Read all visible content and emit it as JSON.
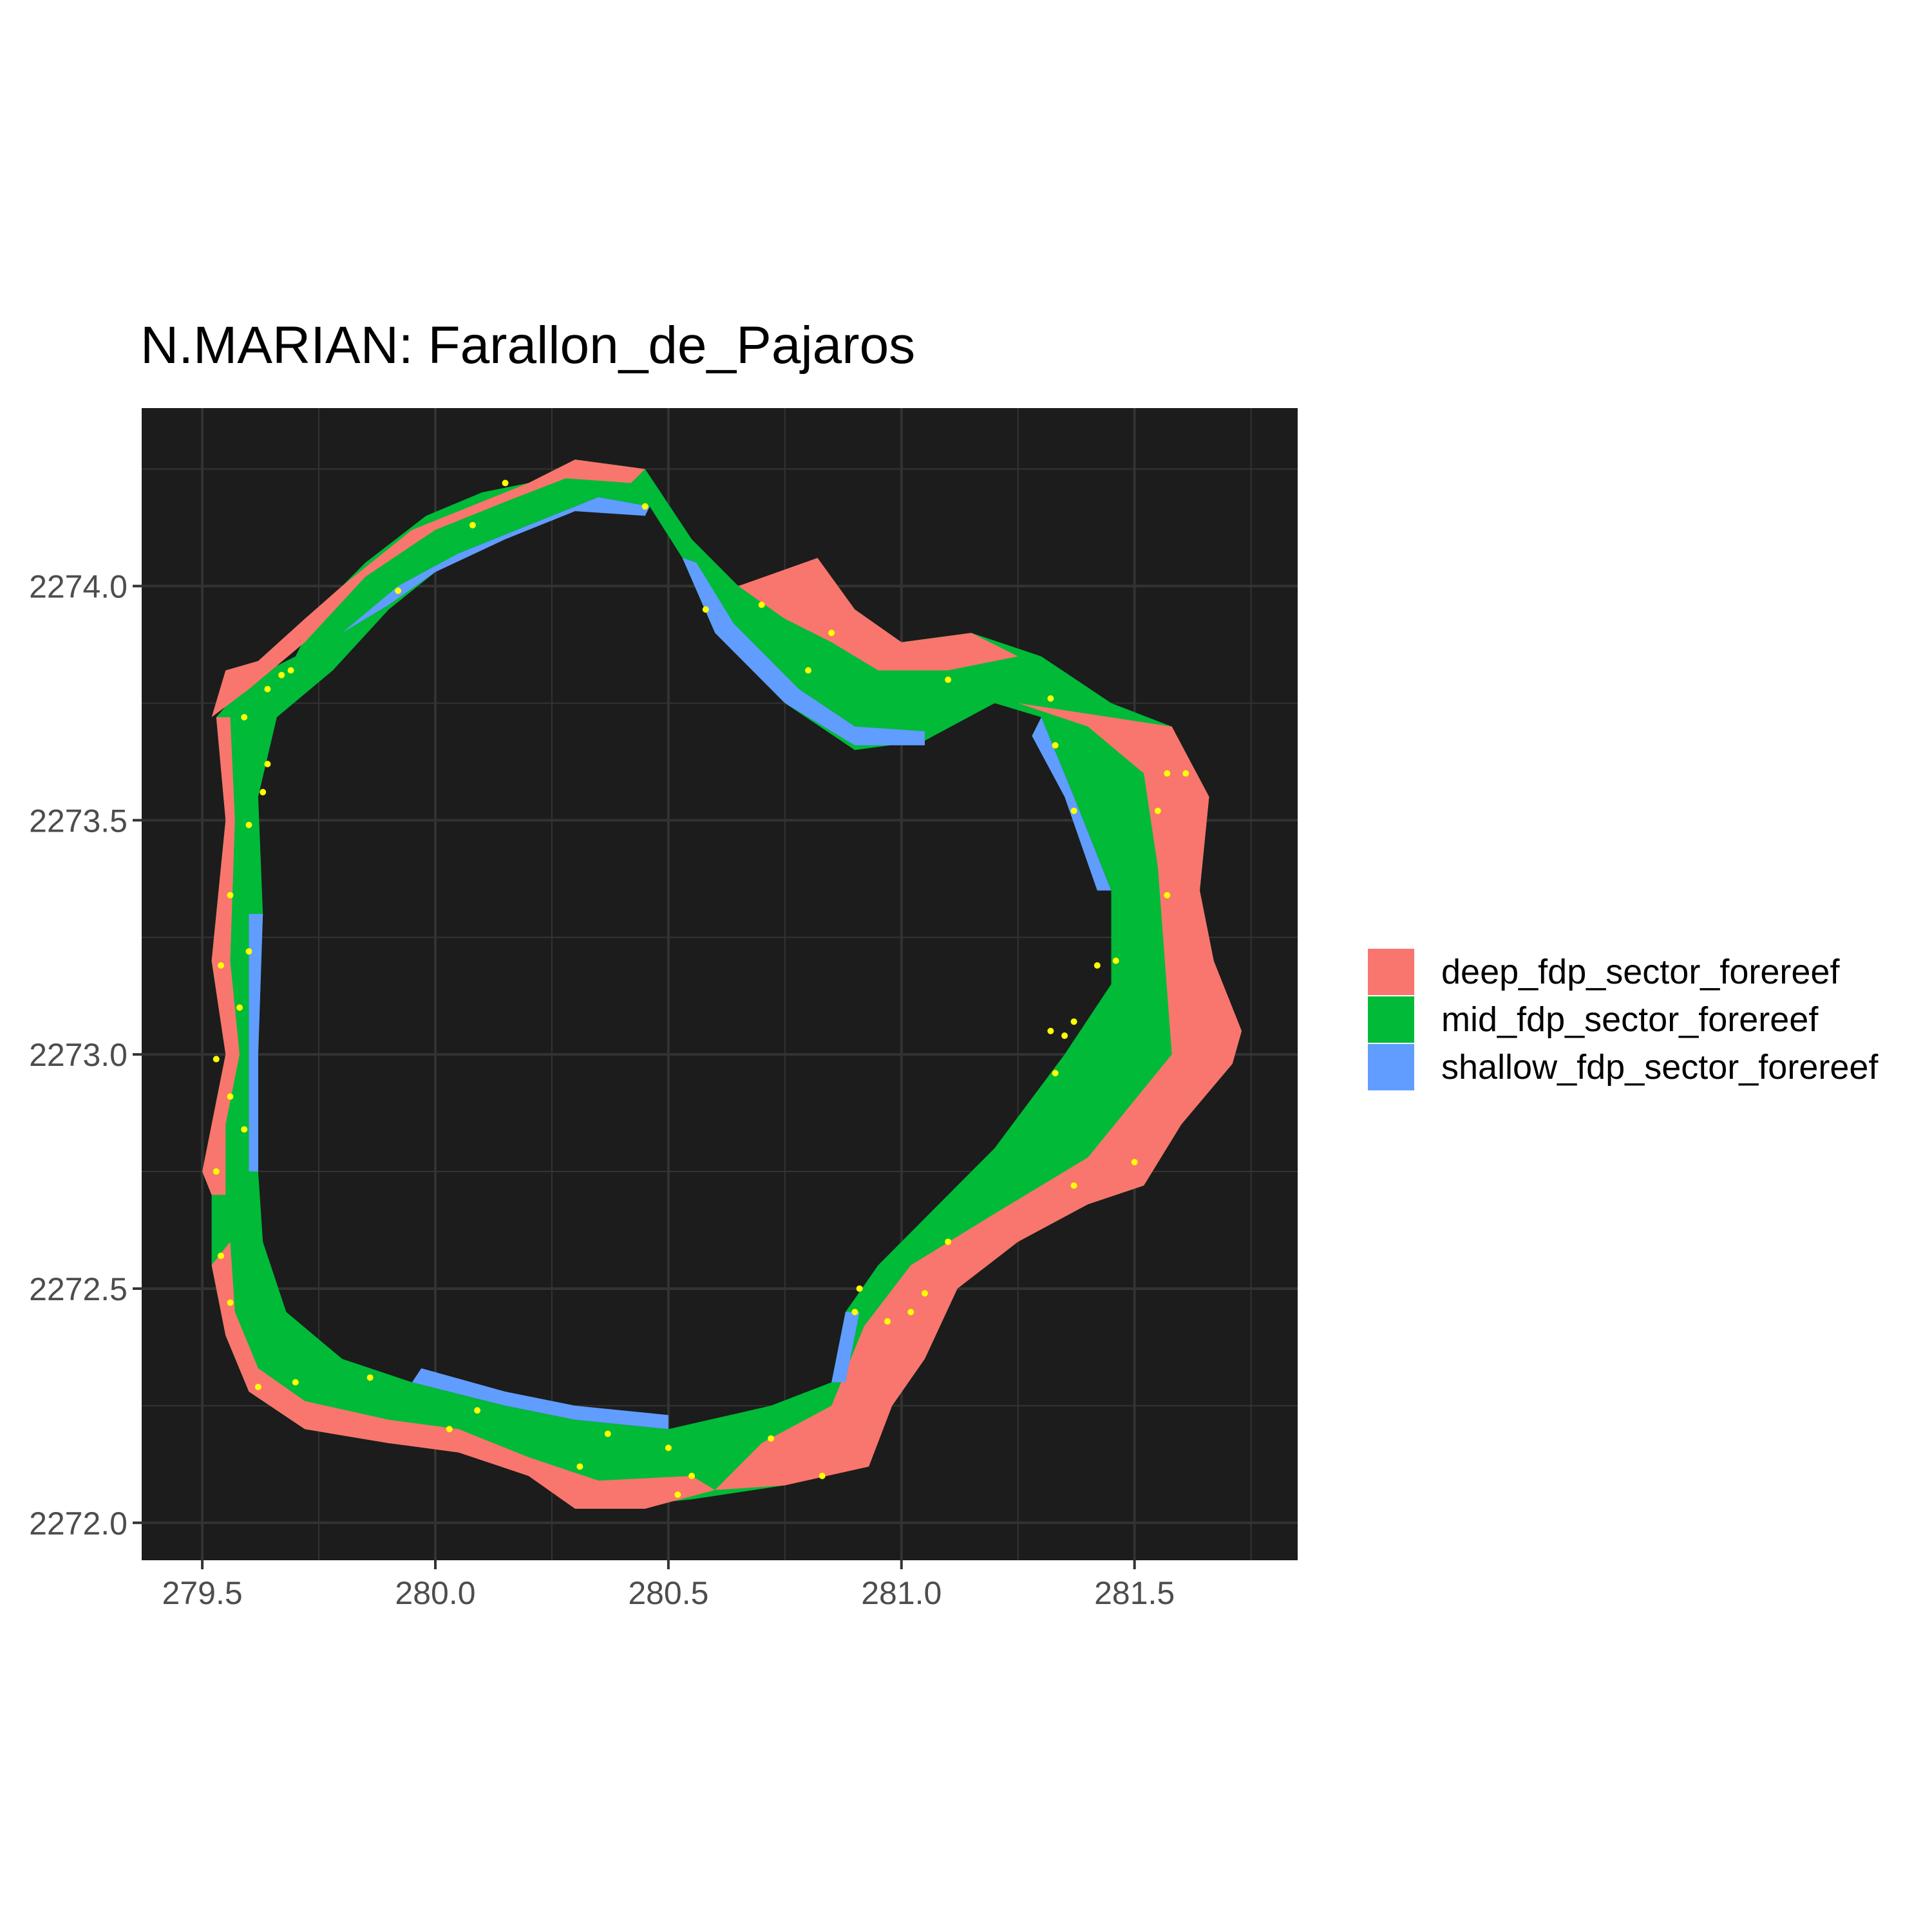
{
  "title": "N.MARIAN: Farallon_de_Pajaros",
  "colors": {
    "panel_bg": "#1c1c1c",
    "grid": "#333333",
    "deep": "#f8766d",
    "mid": "#00ba38",
    "shallow": "#619cff",
    "points": "#ffff00",
    "axis_text": "#4d4d4d"
  },
  "chart_data": {
    "type": "map",
    "title": "N.MARIAN: Farallon_de_Pajaros",
    "xlim": [
      279.37,
      281.85
    ],
    "ylim": [
      2271.92,
      2274.38
    ],
    "x_ticks": [
      279.5,
      280.0,
      280.5,
      281.0,
      281.5
    ],
    "x_tick_labels": [
      "279.5",
      "280.0",
      "280.5",
      "281.0",
      "281.5"
    ],
    "y_ticks": [
      2272.0,
      2272.5,
      2273.0,
      2273.5,
      2274.0
    ],
    "y_tick_labels": [
      "2272.0",
      "2272.5",
      "2273.0",
      "2273.5",
      "2274.0"
    ],
    "grid": true,
    "legend_position": "right",
    "legend": [
      {
        "key": "deep",
        "label": "deep_fdp_sector_forereef"
      },
      {
        "key": "mid",
        "label": "mid_fdp_sector_forereef"
      },
      {
        "key": "shallow",
        "label": "shallow_fdp_sector_forereef"
      }
    ],
    "outer_ring": [
      [
        279.52,
        2272.7
      ],
      [
        279.5,
        2272.75
      ],
      [
        279.52,
        2272.85
      ],
      [
        279.55,
        2273.0
      ],
      [
        279.52,
        2273.2
      ],
      [
        279.55,
        2273.5
      ],
      [
        279.53,
        2273.72
      ],
      [
        279.6,
        2273.8
      ],
      [
        279.7,
        2273.85
      ],
      [
        279.75,
        2273.95
      ],
      [
        279.85,
        2274.05
      ],
      [
        279.98,
        2274.15
      ],
      [
        280.1,
        2274.2
      ],
      [
        280.2,
        2274.22
      ],
      [
        280.3,
        2274.27
      ],
      [
        280.45,
        2274.25
      ],
      [
        280.55,
        2274.1
      ],
      [
        280.65,
        2274.0
      ],
      [
        280.8,
        2274.05
      ],
      [
        280.9,
        2273.95
      ],
      [
        281.0,
        2273.88
      ],
      [
        281.15,
        2273.9
      ],
      [
        281.3,
        2273.85
      ],
      [
        281.45,
        2273.75
      ],
      [
        281.58,
        2273.7
      ],
      [
        281.66,
        2273.55
      ],
      [
        281.64,
        2273.35
      ],
      [
        281.67,
        2273.2
      ],
      [
        281.72,
        2273.05
      ],
      [
        281.7,
        2272.98
      ],
      [
        281.6,
        2272.85
      ],
      [
        281.52,
        2272.72
      ],
      [
        281.4,
        2272.68
      ],
      [
        281.25,
        2272.6
      ],
      [
        281.12,
        2272.5
      ],
      [
        281.05,
        2272.35
      ],
      [
        280.98,
        2272.25
      ],
      [
        280.9,
        2272.15
      ],
      [
        280.75,
        2272.08
      ],
      [
        280.55,
        2272.05
      ],
      [
        280.35,
        2272.03
      ],
      [
        280.2,
        2272.1
      ],
      [
        280.05,
        2272.16
      ],
      [
        279.9,
        2272.17
      ],
      [
        279.72,
        2272.2
      ],
      [
        279.6,
        2272.28
      ],
      [
        279.55,
        2272.4
      ],
      [
        279.52,
        2272.55
      ]
    ],
    "inner_ring": [
      [
        279.62,
        2272.75
      ],
      [
        279.62,
        2273.0
      ],
      [
        279.63,
        2273.3
      ],
      [
        279.62,
        2273.55
      ],
      [
        279.66,
        2273.72
      ],
      [
        279.78,
        2273.82
      ],
      [
        279.9,
        2273.95
      ],
      [
        280.05,
        2274.07
      ],
      [
        280.2,
        2274.13
      ],
      [
        280.35,
        2274.19
      ],
      [
        280.46,
        2274.17
      ],
      [
        280.53,
        2274.06
      ],
      [
        280.6,
        2273.9
      ],
      [
        280.75,
        2273.75
      ],
      [
        280.9,
        2273.65
      ],
      [
        281.05,
        2273.67
      ],
      [
        281.2,
        2273.75
      ],
      [
        281.3,
        2273.72
      ],
      [
        281.37,
        2273.55
      ],
      [
        281.45,
        2273.35
      ],
      [
        281.45,
        2273.15
      ],
      [
        281.35,
        2273.0
      ],
      [
        281.2,
        2272.8
      ],
      [
        281.05,
        2272.65
      ],
      [
        280.95,
        2272.55
      ],
      [
        280.88,
        2272.45
      ],
      [
        280.85,
        2272.3
      ],
      [
        280.72,
        2272.25
      ],
      [
        280.5,
        2272.2
      ],
      [
        280.3,
        2272.22
      ],
      [
        280.15,
        2272.25
      ],
      [
        279.95,
        2272.3
      ],
      [
        279.8,
        2272.35
      ],
      [
        279.68,
        2272.45
      ],
      [
        279.63,
        2272.6
      ]
    ],
    "deep_fill": [
      {
        "points": [
          [
            281.25,
            2273.75
          ],
          [
            281.58,
            2273.7
          ],
          [
            281.66,
            2273.55
          ],
          [
            281.64,
            2273.35
          ],
          [
            281.67,
            2273.2
          ],
          [
            281.73,
            2273.05
          ],
          [
            281.71,
            2272.98
          ],
          [
            281.6,
            2272.85
          ],
          [
            281.52,
            2272.72
          ],
          [
            281.4,
            2272.68
          ],
          [
            281.25,
            2272.6
          ],
          [
            281.12,
            2272.5
          ],
          [
            281.05,
            2272.35
          ],
          [
            280.98,
            2272.25
          ],
          [
            280.93,
            2272.12
          ],
          [
            280.75,
            2272.08
          ],
          [
            280.6,
            2272.07
          ],
          [
            280.7,
            2272.17
          ],
          [
            280.85,
            2272.25
          ],
          [
            280.92,
            2272.42
          ],
          [
            281.02,
            2272.55
          ],
          [
            281.2,
            2272.66
          ],
          [
            281.4,
            2272.78
          ],
          [
            281.58,
            2273.0
          ],
          [
            281.55,
            2273.4
          ],
          [
            281.52,
            2273.6
          ],
          [
            281.4,
            2273.7
          ]
        ]
      },
      {
        "points": [
          [
            280.65,
            2274.0
          ],
          [
            280.82,
            2274.06
          ],
          [
            280.9,
            2273.95
          ],
          [
            281.0,
            2273.88
          ],
          [
            281.15,
            2273.9
          ],
          [
            281.25,
            2273.85
          ],
          [
            281.1,
            2273.82
          ],
          [
            280.95,
            2273.82
          ],
          [
            280.85,
            2273.88
          ],
          [
            280.75,
            2273.93
          ]
        ]
      },
      {
        "points": [
          [
            279.52,
            2273.72
          ],
          [
            279.55,
            2273.82
          ],
          [
            279.62,
            2273.84
          ],
          [
            279.72,
            2273.93
          ],
          [
            279.8,
            2274.0
          ],
          [
            279.95,
            2274.12
          ],
          [
            280.1,
            2274.18
          ],
          [
            280.2,
            2274.22
          ],
          [
            280.3,
            2274.27
          ],
          [
            280.45,
            2274.25
          ],
          [
            280.42,
            2274.22
          ],
          [
            280.28,
            2274.23
          ],
          [
            280.15,
            2274.18
          ],
          [
            280.0,
            2274.12
          ],
          [
            279.85,
            2274.02
          ],
          [
            279.72,
            2273.88
          ],
          [
            279.6,
            2273.78
          ]
        ]
      },
      {
        "points": [
          [
            279.52,
            2272.7
          ],
          [
            279.5,
            2272.75
          ],
          [
            279.52,
            2272.85
          ],
          [
            279.55,
            2273.0
          ],
          [
            279.52,
            2273.2
          ],
          [
            279.55,
            2273.5
          ],
          [
            279.53,
            2273.72
          ],
          [
            279.56,
            2273.72
          ],
          [
            279.57,
            2273.5
          ],
          [
            279.56,
            2273.2
          ],
          [
            279.58,
            2273.0
          ],
          [
            279.55,
            2272.85
          ],
          [
            279.55,
            2272.7
          ]
        ]
      },
      {
        "points": [
          [
            279.52,
            2272.55
          ],
          [
            279.55,
            2272.4
          ],
          [
            279.6,
            2272.28
          ],
          [
            279.72,
            2272.2
          ],
          [
            279.9,
            2272.17
          ],
          [
            280.05,
            2272.15
          ],
          [
            280.2,
            2272.1
          ],
          [
            280.3,
            2272.03
          ],
          [
            280.45,
            2272.03
          ],
          [
            280.6,
            2272.07
          ],
          [
            280.55,
            2272.1
          ],
          [
            280.35,
            2272.09
          ],
          [
            280.2,
            2272.14
          ],
          [
            280.05,
            2272.2
          ],
          [
            279.9,
            2272.22
          ],
          [
            279.72,
            2272.26
          ],
          [
            279.62,
            2272.33
          ],
          [
            279.57,
            2272.45
          ],
          [
            279.56,
            2272.6
          ]
        ]
      }
    ],
    "shallow_fill": [
      {
        "points": [
          [
            279.8,
            2273.9
          ],
          [
            279.92,
            2274.0
          ],
          [
            280.05,
            2274.07
          ],
          [
            280.2,
            2274.13
          ],
          [
            280.35,
            2274.19
          ],
          [
            280.46,
            2274.17
          ],
          [
            280.45,
            2274.15
          ],
          [
            280.3,
            2274.16
          ],
          [
            280.15,
            2274.1
          ],
          [
            280.0,
            2274.03
          ],
          [
            279.9,
            2273.96
          ]
        ]
      },
      {
        "points": [
          [
            280.53,
            2274.06
          ],
          [
            280.6,
            2273.9
          ],
          [
            280.75,
            2273.75
          ],
          [
            280.9,
            2273.66
          ],
          [
            281.05,
            2273.66
          ],
          [
            281.05,
            2273.69
          ],
          [
            280.9,
            2273.7
          ],
          [
            280.78,
            2273.78
          ],
          [
            280.64,
            2273.92
          ],
          [
            280.56,
            2274.05
          ]
        ]
      },
      {
        "points": [
          [
            281.3,
            2273.72
          ],
          [
            281.37,
            2273.55
          ],
          [
            281.45,
            2273.35
          ],
          [
            281.42,
            2273.35
          ],
          [
            281.35,
            2273.55
          ],
          [
            281.28,
            2273.68
          ]
        ]
      },
      {
        "points": [
          [
            279.95,
            2272.3
          ],
          [
            280.15,
            2272.25
          ],
          [
            280.3,
            2272.22
          ],
          [
            280.5,
            2272.2
          ],
          [
            280.5,
            2272.23
          ],
          [
            280.3,
            2272.25
          ],
          [
            280.15,
            2272.28
          ],
          [
            279.97,
            2272.33
          ]
        ]
      },
      {
        "points": [
          [
            280.88,
            2272.45
          ],
          [
            280.85,
            2272.3
          ],
          [
            280.88,
            2272.3
          ],
          [
            280.91,
            2272.45
          ]
        ]
      },
      {
        "points": [
          [
            279.62,
            2272.75
          ],
          [
            279.62,
            2273.0
          ],
          [
            279.63,
            2273.3
          ],
          [
            279.6,
            2273.3
          ],
          [
            279.6,
            2273.0
          ],
          [
            279.6,
            2272.75
          ]
        ]
      }
    ],
    "survey_points": [
      [
        280.15,
        2274.22
      ],
      [
        280.45,
        2274.17
      ],
      [
        280.08,
        2274.13
      ],
      [
        279.92,
        2273.99
      ],
      [
        280.58,
        2273.95
      ],
      [
        280.7,
        2273.96
      ],
      [
        280.85,
        2273.9
      ],
      [
        280.8,
        2273.82
      ],
      [
        281.1,
        2273.8
      ],
      [
        281.32,
        2273.76
      ],
      [
        281.33,
        2273.66
      ],
      [
        281.57,
        2273.6
      ],
      [
        281.61,
        2273.6
      ],
      [
        281.37,
        2273.52
      ],
      [
        281.55,
        2273.52
      ],
      [
        281.57,
        2273.34
      ],
      [
        281.42,
        2273.19
      ],
      [
        281.46,
        2273.2
      ],
      [
        281.37,
        2273.07
      ],
      [
        281.32,
        2273.05
      ],
      [
        281.35,
        2273.04
      ],
      [
        281.33,
        2272.96
      ],
      [
        281.5,
        2272.77
      ],
      [
        281.37,
        2272.72
      ],
      [
        281.1,
        2272.6
      ],
      [
        280.91,
        2272.5
      ],
      [
        280.9,
        2272.45
      ],
      [
        281.05,
        2272.49
      ],
      [
        281.02,
        2272.45
      ],
      [
        280.97,
        2272.43
      ],
      [
        280.72,
        2272.18
      ],
      [
        280.83,
        2272.1
      ],
      [
        280.55,
        2272.1
      ],
      [
        280.5,
        2272.16
      ],
      [
        280.52,
        2272.06
      ],
      [
        280.37,
        2272.19
      ],
      [
        280.31,
        2272.12
      ],
      [
        280.09,
        2272.24
      ],
      [
        280.03,
        2272.2
      ],
      [
        279.86,
        2272.31
      ],
      [
        279.7,
        2272.3
      ],
      [
        279.62,
        2272.29
      ],
      [
        279.56,
        2272.47
      ],
      [
        279.54,
        2272.57
      ],
      [
        279.53,
        2272.75
      ],
      [
        279.59,
        2272.84
      ],
      [
        279.56,
        2272.91
      ],
      [
        279.53,
        2272.99
      ],
      [
        279.58,
        2273.1
      ],
      [
        279.54,
        2273.19
      ],
      [
        279.6,
        2273.22
      ],
      [
        279.56,
        2273.34
      ],
      [
        279.6,
        2273.49
      ],
      [
        279.63,
        2273.56
      ],
      [
        279.64,
        2273.62
      ],
      [
        279.59,
        2273.72
      ],
      [
        279.64,
        2273.78
      ],
      [
        279.67,
        2273.81
      ],
      [
        279.69,
        2273.82
      ]
    ]
  }
}
